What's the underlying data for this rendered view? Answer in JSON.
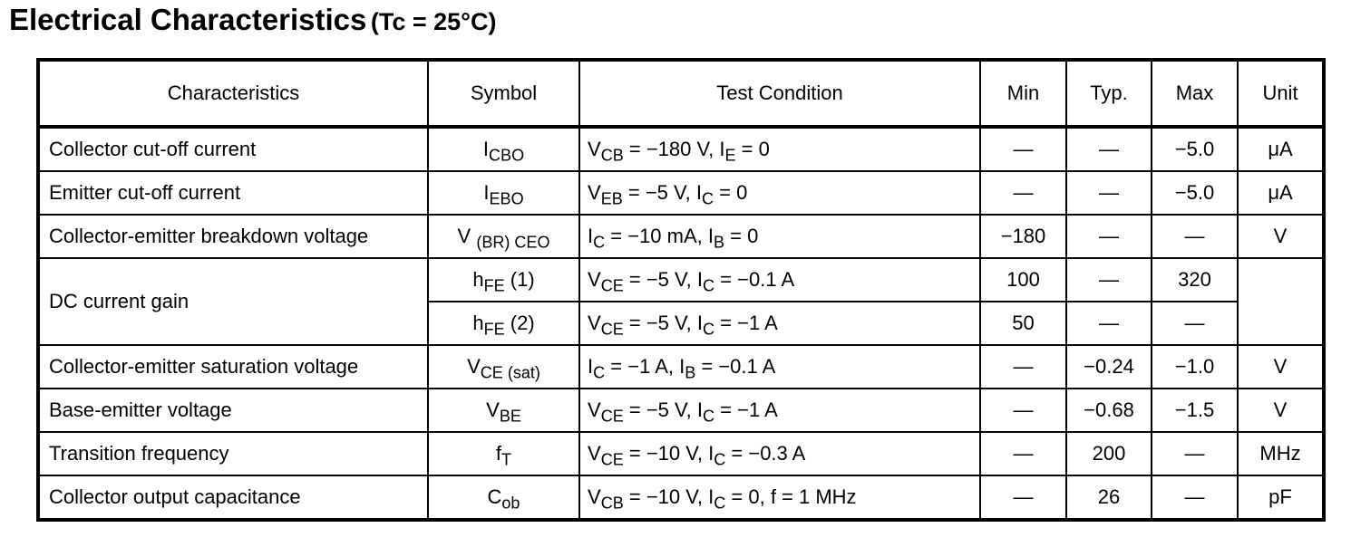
{
  "title": {
    "main": "Electrical Characteristics",
    "sub": "(Tc = 25°C)"
  },
  "table": {
    "headers": {
      "characteristics": "Characteristics",
      "symbol": "Symbol",
      "test_condition": "Test Condition",
      "min": "Min",
      "typ": "Typ.",
      "max": "Max",
      "unit": "Unit"
    },
    "rows": [
      {
        "characteristic": "Collector cut-off current",
        "symbol": {
          "base": "I",
          "sub": "CBO",
          "suffix": ""
        },
        "condition": [
          {
            "t": "V"
          },
          {
            "s": "CB"
          },
          {
            "t": " = −180 V, I"
          },
          {
            "s": "E"
          },
          {
            "t": " = 0"
          }
        ],
        "min": "—",
        "typ": "—",
        "max": "−5.0",
        "unit": "μA"
      },
      {
        "characteristic": "Emitter cut-off current",
        "symbol": {
          "base": "I",
          "sub": "EBO",
          "suffix": ""
        },
        "condition": [
          {
            "t": "V"
          },
          {
            "s": "EB"
          },
          {
            "t": " = −5 V, I"
          },
          {
            "s": "C"
          },
          {
            "t": " = 0"
          }
        ],
        "min": "—",
        "typ": "—",
        "max": "−5.0",
        "unit": "μA"
      },
      {
        "characteristic": "Collector-emitter breakdown voltage",
        "symbol": {
          "base": "V ",
          "sub": "(BR) CEO",
          "suffix": ""
        },
        "condition": [
          {
            "t": "I"
          },
          {
            "s": "C"
          },
          {
            "t": " = −10 mA, I"
          },
          {
            "s": "B"
          },
          {
            "t": " = 0"
          }
        ],
        "min": "−180",
        "typ": "—",
        "max": "—",
        "unit": "V"
      },
      {
        "characteristic": "DC current gain",
        "symbol": {
          "base": "h",
          "sub": "FE",
          "suffix": " (1)"
        },
        "condition": [
          {
            "t": "V"
          },
          {
            "s": "CE"
          },
          {
            "t": " = −5 V, I"
          },
          {
            "s": "C"
          },
          {
            "t": " = −0.1 A"
          }
        ],
        "min": "100",
        "typ": "—",
        "max": "320",
        "unit": ""
      },
      {
        "characteristic": "",
        "symbol": {
          "base": "h",
          "sub": "FE",
          "suffix": " (2)"
        },
        "condition": [
          {
            "t": "V"
          },
          {
            "s": "CE"
          },
          {
            "t": " = −5 V, I"
          },
          {
            "s": "C"
          },
          {
            "t": " = −1 A"
          }
        ],
        "min": "50",
        "typ": "—",
        "max": "—",
        "unit": ""
      },
      {
        "characteristic": "Collector-emitter saturation voltage",
        "symbol": {
          "base": "V",
          "sub": "CE (sat)",
          "suffix": ""
        },
        "condition": [
          {
            "t": "I"
          },
          {
            "s": "C"
          },
          {
            "t": " = −1 A, I"
          },
          {
            "s": "B"
          },
          {
            "t": " = −0.1 A"
          }
        ],
        "min": "—",
        "typ": "−0.24",
        "max": "−1.0",
        "unit": "V"
      },
      {
        "characteristic": "Base-emitter voltage",
        "symbol": {
          "base": "V",
          "sub": "BE",
          "suffix": ""
        },
        "condition": [
          {
            "t": "V"
          },
          {
            "s": "CE"
          },
          {
            "t": " = −5 V, I"
          },
          {
            "s": "C"
          },
          {
            "t": " = −1 A"
          }
        ],
        "min": "—",
        "typ": "−0.68",
        "max": "−1.5",
        "unit": "V"
      },
      {
        "characteristic": "Transition frequency",
        "symbol": {
          "base": "f",
          "sub": "T",
          "suffix": ""
        },
        "condition": [
          {
            "t": "V"
          },
          {
            "s": "CE"
          },
          {
            "t": " = −10 V, I"
          },
          {
            "s": "C"
          },
          {
            "t": " = −0.3 A"
          }
        ],
        "min": "—",
        "typ": "200",
        "max": "—",
        "unit": "MHz"
      },
      {
        "characteristic": "Collector output capacitance",
        "symbol": {
          "base": "C",
          "sub": "ob",
          "suffix": ""
        },
        "condition": [
          {
            "t": "V"
          },
          {
            "s": "CB"
          },
          {
            "t": " = −10 V, I"
          },
          {
            "s": "C"
          },
          {
            "t": " = 0, f = 1 MHz"
          }
        ],
        "min": "—",
        "typ": "26",
        "max": "—",
        "unit": "pF"
      }
    ]
  }
}
